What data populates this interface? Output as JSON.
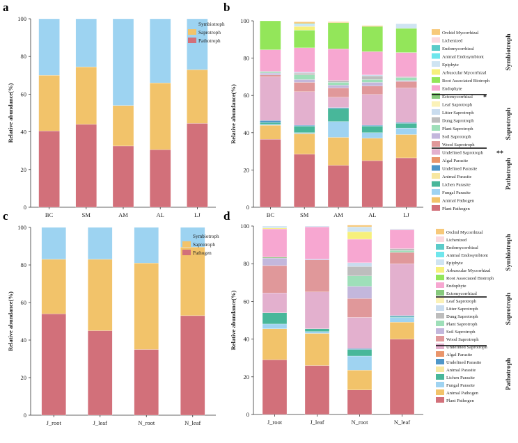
{
  "colors": {
    "Symbiotroph": "#9dd3f1",
    "Saprotroph": "#f2c36a",
    "Pathotroph": "#d2707a",
    "Pathogen": "#d2707a",
    "Orchid Mycorrhizal": "#f7c97a",
    "Lichenized": "#fbd9df",
    "Endomycorrhizal": "#5ccbc9",
    "Animal Endosymbiont": "#6fe6ec",
    "Epiphyte": "#cfe4f2",
    "Arbuscular Mycorrhizal": "#f6f07c",
    "Root Associated Biotroph": "#93e65a",
    "Endophyte": "#f7a7d1",
    "Ectomycorrhizal": "#86c97b",
    "Leaf Saprotroph": "#fbf2b8",
    "Litter Saprotroph": "#c9dcee",
    "Dung Saprotroph": "#bdbdbd",
    "Plant Saprotroph": "#9edfb9",
    "Soil Saprotroph": "#c3b7dc",
    "Wood Saprotroph": "#e0989a",
    "Undefined Saprotroph": "#e3b0ce",
    "Algal Parasite": "#e9956b",
    "Undefined Parasite": "#4f97c9",
    "Animal Parasite": "#f7e7a1",
    "Lichen Parasite": "#48b79a",
    "Fungal Parasite": "#9fd3f1",
    "Animal Pathogen": "#f2c36a",
    "Plant Pathogen": "#d2707a"
  },
  "chart_data": [
    {
      "panel": "a",
      "type": "bar",
      "stacked": true,
      "ylabel": "Relative abundance(%)",
      "ylim": [
        0,
        100
      ],
      "yticks": [
        "0",
        "20",
        "40",
        "60",
        "80",
        "100"
      ],
      "categories": [
        "BC",
        "SM",
        "AM",
        "AL",
        "LJ"
      ],
      "series": [
        {
          "name": "Pathotroph",
          "values": [
            40.5,
            44,
            32.5,
            30.5,
            44.5
          ]
        },
        {
          "name": "Saprotroph",
          "values": [
            29.5,
            30.5,
            21.5,
            35.5,
            28.5
          ]
        },
        {
          "name": "Symbiotroph",
          "values": [
            30,
            25.5,
            46,
            34,
            27
          ]
        }
      ],
      "legend": [
        "Symbiotroph",
        "Saprotroph",
        "Pathotroph"
      ]
    },
    {
      "panel": "b",
      "type": "bar",
      "stacked": true,
      "ylabel": "Relative abundance(%)",
      "ylim": [
        0,
        100
      ],
      "yticks": [
        "0",
        "20",
        "40",
        "60",
        "80",
        "100"
      ],
      "categories": [
        "BC",
        "SM",
        "AM",
        "AL",
        "LJ"
      ],
      "series": [
        {
          "name": "Plant Pathogen",
          "values": [
            36.5,
            28.5,
            22.5,
            25,
            26.5
          ]
        },
        {
          "name": "Animal Pathogen",
          "values": [
            7.5,
            11,
            15,
            12,
            12.5
          ]
        },
        {
          "name": "Fungal Parasite",
          "values": [
            0.5,
            0.5,
            8.5,
            3,
            3.5
          ]
        },
        {
          "name": "Lichen Parasite",
          "values": [
            1,
            3.5,
            7,
            3.5,
            2.5
          ]
        },
        {
          "name": "Animal Parasite",
          "values": [
            0,
            0,
            0,
            0,
            0
          ]
        },
        {
          "name": "Undefined Parasite",
          "values": [
            1,
            0.5,
            0.5,
            0.5,
            0.5
          ]
        },
        {
          "name": "Algal Parasite",
          "values": [
            0,
            0,
            0,
            0,
            0
          ]
        },
        {
          "name": "Undefined Saprotroph",
          "values": [
            23.5,
            18,
            5.5,
            16.5,
            18.5
          ]
        },
        {
          "name": "Wood Saprotroph",
          "values": [
            1,
            5,
            5,
            4.5,
            3.5
          ]
        },
        {
          "name": "Soil Saprotroph",
          "values": [
            1,
            1.5,
            1.5,
            2,
            0.5
          ]
        },
        {
          "name": "Plant Saprotroph",
          "values": [
            0.5,
            2.5,
            1.5,
            1.5,
            1.5
          ]
        },
        {
          "name": "Dung Saprotroph",
          "values": [
            0.5,
            1,
            1,
            2,
            0.5
          ]
        },
        {
          "name": "Litter Saprotroph",
          "values": [
            0,
            0.5,
            0,
            0.5,
            0
          ]
        },
        {
          "name": "Leaf Saprotroph",
          "values": [
            0,
            0,
            0,
            0,
            0
          ]
        },
        {
          "name": "Ectomycorrhizal",
          "values": [
            0,
            0,
            0,
            0,
            0
          ]
        },
        {
          "name": "Endophyte",
          "values": [
            11.5,
            13,
            17,
            12.5,
            13
          ]
        },
        {
          "name": "Root Associated Biotroph",
          "values": [
            15.5,
            9.5,
            14,
            13.5,
            13
          ]
        },
        {
          "name": "Arbuscular Mycorrhizal",
          "values": [
            0,
            2,
            0,
            0,
            0
          ]
        },
        {
          "name": "Epiphyte",
          "values": [
            0,
            1,
            0,
            0,
            2.5
          ]
        },
        {
          "name": "Animal Endosymbiont",
          "values": [
            0,
            0.5,
            0,
            0,
            0
          ]
        },
        {
          "name": "Endomycorrhizal",
          "values": [
            0,
            0,
            0,
            0,
            0
          ]
        },
        {
          "name": "Lichenized",
          "values": [
            0,
            0,
            0,
            0,
            0
          ]
        },
        {
          "name": "Orchid Mycorrhizal",
          "values": [
            0,
            1,
            0.5,
            0.5,
            0
          ]
        }
      ],
      "legend": [
        "Orchid Mycorrhizal",
        "Lichenized",
        "Endomycorrhizal",
        "Animal Endosymbiont",
        "Epiphyte",
        "Arbuscular Mycorrhizal",
        "Root Associated Biotroph",
        "Endophyte",
        "Ectomycorrhizal",
        "Leaf Saprotroph",
        "Litter Saprotroph",
        "Dung Saprotroph",
        "Plant Saprotroph",
        "Soil Saprotroph",
        "Wood Saprotroph",
        "Undefined Saprotroph",
        "Algal Parasite",
        "Undefined Parasite",
        "Animal Parasite",
        "Lichen Parasite",
        "Fungal Parasite",
        "Animal Pathogen",
        "Plant Pathogen"
      ],
      "annotations": {
        "Ectomycorrhizal": "*",
        "Undefined Saprotroph": "**"
      },
      "groups": [
        "Symbiotroph",
        "Saprotroph",
        "Pathotroph"
      ]
    },
    {
      "panel": "c",
      "type": "bar",
      "stacked": true,
      "ylabel": "Relative abundance(%)",
      "ylim": [
        0,
        100
      ],
      "yticks": [
        "0",
        "20",
        "40",
        "60",
        "80",
        "100"
      ],
      "categories": [
        "J_root",
        "J_leaf",
        "N_root",
        "N_leaf"
      ],
      "series": [
        {
          "name": "Pathogen",
          "values": [
            54,
            45,
            35,
            53
          ]
        },
        {
          "name": "Saprotroph",
          "values": [
            29,
            38,
            46,
            36.5
          ]
        },
        {
          "name": "Symbiotroph",
          "values": [
            17,
            17,
            19,
            10.5
          ]
        }
      ],
      "legend": [
        "Symbiotroph",
        "Saprotroph",
        "Pathogen"
      ]
    },
    {
      "panel": "d",
      "type": "bar",
      "stacked": true,
      "ylabel": "Relative abundance(%)",
      "ylim": [
        0,
        100
      ],
      "yticks": [
        "0",
        "20",
        "40",
        "60",
        "80",
        "100"
      ],
      "categories": [
        "J_root",
        "J_leaf",
        "N_root",
        "N_leaf"
      ],
      "series": [
        {
          "name": "Plant Pathogen",
          "values": [
            29,
            26,
            13,
            40
          ]
        },
        {
          "name": "Animal Pathogen",
          "values": [
            16.5,
            17,
            10.5,
            9
          ]
        },
        {
          "name": "Fungal Parasite",
          "values": [
            2.5,
            1,
            7.5,
            2.5
          ]
        },
        {
          "name": "Lichen Parasite",
          "values": [
            6,
            1.5,
            3.5,
            0.5
          ]
        },
        {
          "name": "Animal Parasite",
          "values": [
            0,
            0,
            0,
            0
          ]
        },
        {
          "name": "Undefined Parasite",
          "values": [
            0,
            0,
            0.5,
            0.5
          ]
        },
        {
          "name": "Algal Parasite",
          "values": [
            0,
            0,
            0,
            0
          ]
        },
        {
          "name": "Undefined Saprotroph",
          "values": [
            10.5,
            19.5,
            16.5,
            27.5
          ]
        },
        {
          "name": "Wood Saprotroph",
          "values": [
            14.5,
            17,
            10,
            6
          ]
        },
        {
          "name": "Soil Saprotroph",
          "values": [
            4,
            0.5,
            6.5,
            0
          ]
        },
        {
          "name": "Plant Saprotroph",
          "values": [
            0,
            0,
            5.5,
            1
          ]
        },
        {
          "name": "Dung Saprotroph",
          "values": [
            0,
            0,
            5,
            1
          ]
        },
        {
          "name": "Litter Saprotroph",
          "values": [
            0,
            0,
            2,
            0
          ]
        },
        {
          "name": "Leaf Saprotroph",
          "values": [
            0,
            0,
            0,
            0
          ]
        },
        {
          "name": "Ectomycorrhizal",
          "values": [
            0.5,
            0,
            0,
            0
          ]
        },
        {
          "name": "Endophyte",
          "values": [
            15,
            17,
            12.5,
            10
          ]
        },
        {
          "name": "Root Associated Biotroph",
          "values": [
            0,
            0,
            0,
            0
          ]
        },
        {
          "name": "Arbuscular Mycorrhizal",
          "values": [
            0.5,
            0,
            4,
            0
          ]
        },
        {
          "name": "Epiphyte",
          "values": [
            1,
            0.5,
            2.5,
            0.5
          ]
        },
        {
          "name": "Animal Endosymbiont",
          "values": [
            0,
            0,
            0,
            0
          ]
        },
        {
          "name": "Endomycorrhizal",
          "values": [
            0,
            0,
            0,
            0
          ]
        },
        {
          "name": "Lichenized",
          "values": [
            0,
            0,
            0,
            0
          ]
        },
        {
          "name": "Orchid Mycorrhizal",
          "values": [
            0,
            0,
            1,
            0
          ]
        }
      ],
      "legend": [
        "Orchid Mycorrhizal",
        "Lichenized",
        "Endomycorrhizal",
        "Animal Endosymbiont",
        "Epiphyte",
        "Arbuscular Mycorrhizal",
        "Root Associated Biotroph",
        "Endophyte",
        "Ectomycorrhizal",
        "Leaf Saprotroph",
        "Litter Saprotroph",
        "Dung Saprotroph",
        "Plant Saprotroph",
        "Soil Saprotroph",
        "Wood Saprotroph",
        "Undefined Saprotroph",
        "Algal Parasite",
        "Undefined Parasite",
        "Animal Parasite",
        "Lichen Parasite",
        "Fungal Parasite",
        "Animal Pathogen",
        "Plant Pathogen"
      ],
      "annotations": {},
      "groups": [
        "Symbiotroph",
        "Saprotroph",
        "Pathotroph"
      ]
    }
  ]
}
